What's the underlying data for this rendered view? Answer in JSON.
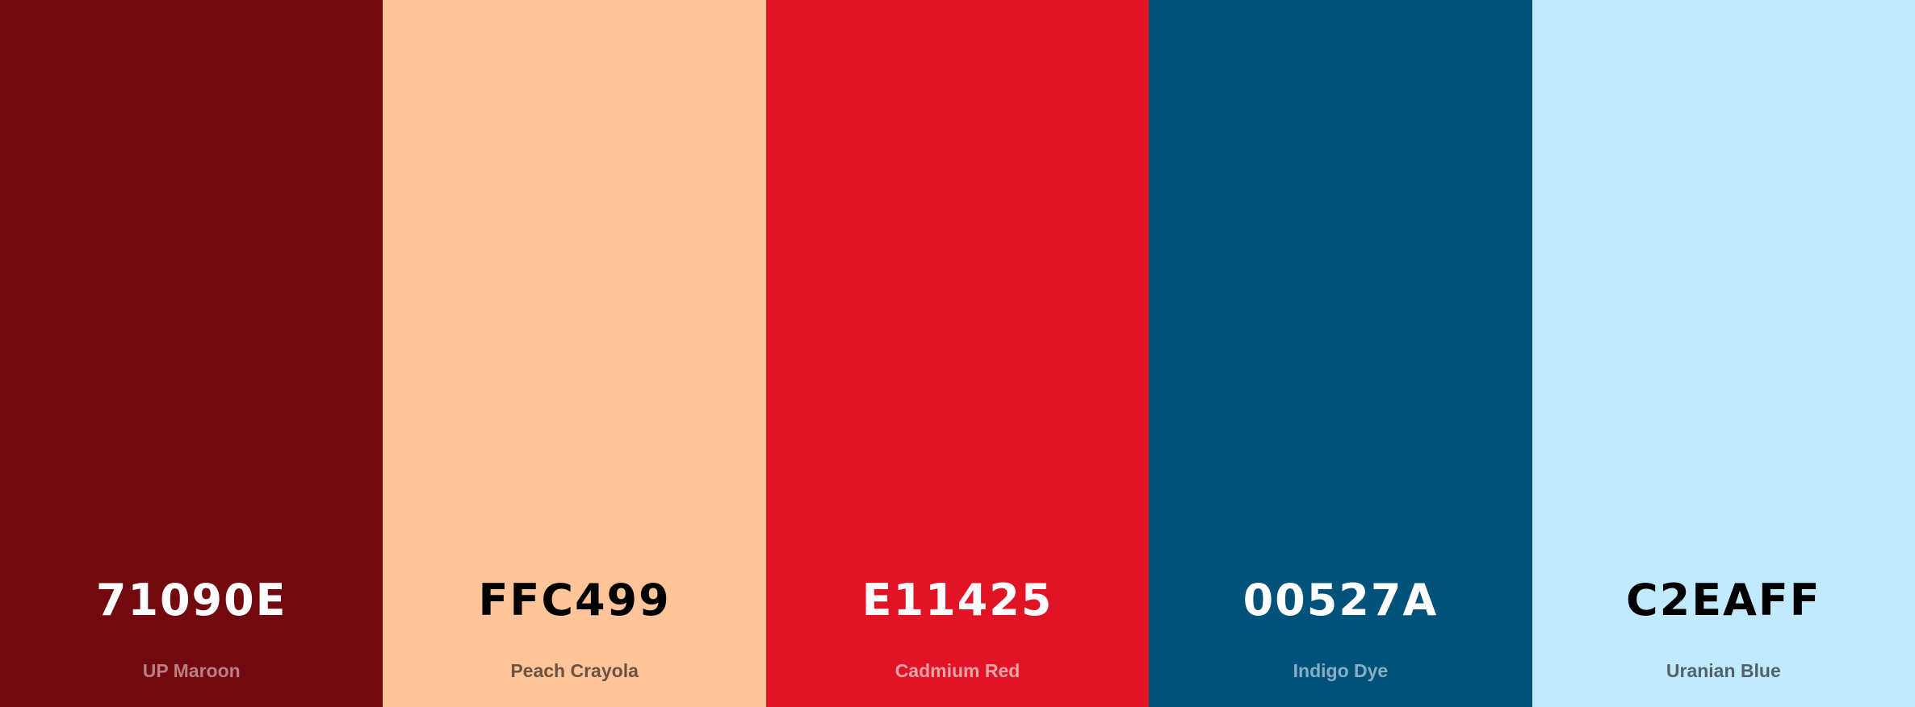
{
  "palette": {
    "swatches": [
      {
        "hex": "71090E",
        "name": "UP Maroon",
        "color": "#71090E",
        "hex_text_color": "#FFFFFF",
        "name_text_color": "#B97F82"
      },
      {
        "hex": "FFC499",
        "name": "Peach Crayola",
        "color": "#FFC499",
        "hex_text_color": "#000000",
        "name_text_color": "#6B5243"
      },
      {
        "hex": "E11425",
        "name": "Cadmium Red",
        "color": "#E11425",
        "hex_text_color": "#FFFFFF",
        "name_text_color": "#F0A2A8"
      },
      {
        "hex": "00527A",
        "name": "Indigo Dye",
        "color": "#00527A",
        "hex_text_color": "#FFFFFF",
        "name_text_color": "#86AFC3"
      },
      {
        "hex": "C2EAFF",
        "name": "Uranian Blue",
        "color": "#C2EAFF",
        "hex_text_color": "#000000",
        "name_text_color": "#52626B"
      }
    ]
  }
}
